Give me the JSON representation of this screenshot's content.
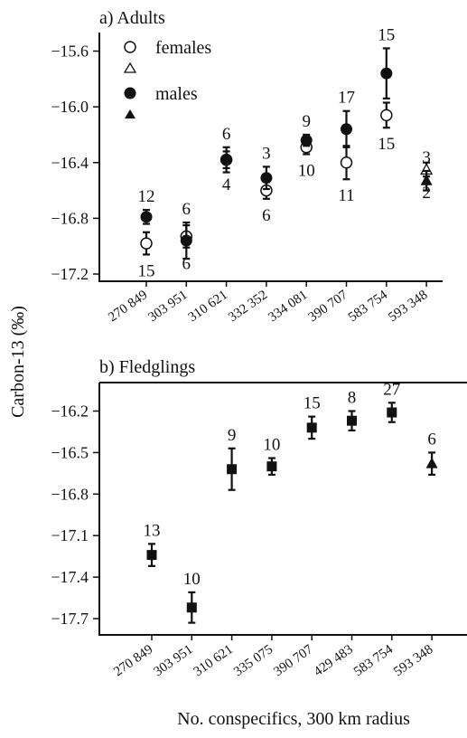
{
  "chart_data": [
    {
      "type": "scatter",
      "title": "a) Adults",
      "ylabel": "Carbon-13 (‰)",
      "ylim": [
        -17.2,
        -15.6
      ],
      "yticks": [
        -15.6,
        -16.0,
        -16.4,
        -16.8,
        -17.2
      ],
      "ytick_labels": [
        "−15.6",
        "−16.0",
        "−16.4",
        "−16.8",
        "−17.2"
      ],
      "categories": [
        "270 849",
        "303 951",
        "310 621",
        "332 352",
        "334 081",
        "390 707",
        "583 754",
        "593 348"
      ],
      "legend": [
        {
          "label": "females",
          "marker": "open-circle"
        },
        {
          "label": "",
          "marker": "open-triangle"
        },
        {
          "label": "males",
          "marker": "filled-circle"
        },
        {
          "label": "",
          "marker": "filled-triangle"
        }
      ],
      "series": [
        {
          "group": "females",
          "points": [
            {
              "cat": 0,
              "y": -16.98,
              "err": 0.08,
              "marker": "open-circle",
              "n": "15"
            },
            {
              "cat": 1,
              "y": -16.93,
              "err": 0.08,
              "marker": "open-circle",
              "n": "6"
            },
            {
              "cat": 2,
              "y": -16.38,
              "err": 0.06,
              "marker": "open-circle",
              "n": "4"
            },
            {
              "cat": 3,
              "y": -16.6,
              "err": 0.06,
              "marker": "open-circle",
              "n": "6"
            },
            {
              "cat": 4,
              "y": -16.29,
              "err": 0.05,
              "marker": "open-circle",
              "n": "10"
            },
            {
              "cat": 5,
              "y": -16.4,
              "err": 0.12,
              "marker": "open-circle",
              "n": "11"
            },
            {
              "cat": 6,
              "y": -16.06,
              "err": 0.09,
              "marker": "open-circle",
              "n": "15"
            },
            {
              "cat": 7,
              "y": -16.45,
              "err": 0.05,
              "marker": "open-triangle",
              "n": "2"
            }
          ]
        },
        {
          "group": "males",
          "points": [
            {
              "cat": 0,
              "y": -16.79,
              "err": 0.05,
              "marker": "filled-circle",
              "n": "12"
            },
            {
              "cat": 1,
              "y": -16.96,
              "err": 0.13,
              "marker": "filled-circle",
              "n": "6"
            },
            {
              "cat": 2,
              "y": -16.38,
              "err": 0.09,
              "marker": "filled-circle",
              "n": "6"
            },
            {
              "cat": 3,
              "y": -16.51,
              "err": 0.08,
              "marker": "filled-circle",
              "n": "3"
            },
            {
              "cat": 4,
              "y": -16.24,
              "err": 0.04,
              "marker": "filled-circle",
              "n": "9"
            },
            {
              "cat": 5,
              "y": -16.16,
              "err": 0.13,
              "marker": "filled-circle",
              "n": "17"
            },
            {
              "cat": 6,
              "y": -15.76,
              "err": 0.18,
              "marker": "filled-circle",
              "n": "15"
            },
            {
              "cat": 7,
              "y": -16.53,
              "err": 0.07,
              "marker": "filled-triangle",
              "n": "3"
            }
          ]
        }
      ]
    },
    {
      "type": "scatter",
      "title": "b) Fledglings",
      "ylim": [
        -17.8,
        -16.05
      ],
      "yticks": [
        -16.2,
        -16.5,
        -16.8,
        -17.1,
        -17.4,
        -17.7
      ],
      "ytick_labels": [
        "−16.2",
        "−16.5",
        "−16.8",
        "−17.1",
        "−17.4",
        "−17.7"
      ],
      "xlabel": "No. conspecifics, 300 km radius",
      "categories": [
        "270 849",
        "303 951",
        "310 621",
        "335 075",
        "390 707",
        "429 483",
        "583 754",
        "593 348"
      ],
      "series": [
        {
          "group": "fledglings",
          "points": [
            {
              "cat": 0,
              "y": -17.24,
              "err": 0.08,
              "marker": "filled-square",
              "n": "13"
            },
            {
              "cat": 1,
              "y": -17.62,
              "err": 0.11,
              "marker": "filled-square",
              "n": "10"
            },
            {
              "cat": 2,
              "y": -16.62,
              "err": 0.15,
              "marker": "filled-square",
              "n": "9"
            },
            {
              "cat": 3,
              "y": -16.6,
              "err": 0.06,
              "marker": "filled-square",
              "n": "10"
            },
            {
              "cat": 4,
              "y": -16.32,
              "err": 0.08,
              "marker": "filled-square",
              "n": "15"
            },
            {
              "cat": 5,
              "y": -16.27,
              "err": 0.07,
              "marker": "filled-square",
              "n": "8"
            },
            {
              "cat": 6,
              "y": -16.21,
              "err": 0.07,
              "marker": "filled-square",
              "n": "27"
            },
            {
              "cat": 7,
              "y": -16.58,
              "err": 0.08,
              "marker": "filled-triangle",
              "n": "6"
            }
          ]
        }
      ]
    }
  ]
}
